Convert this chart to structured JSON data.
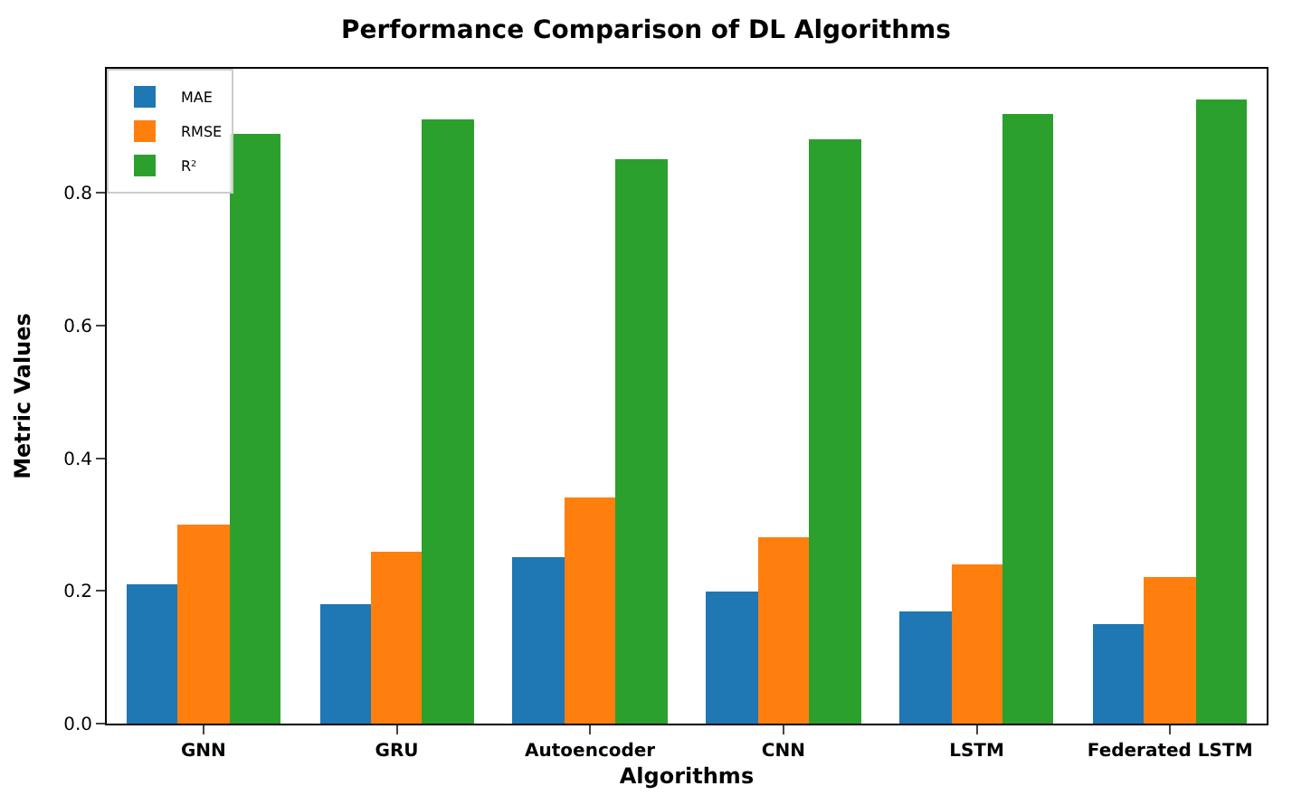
{
  "chart_data": {
    "type": "bar",
    "title": "Performance Comparison of DL Algorithms",
    "xlabel": "Algorithms",
    "ylabel": "Metric Values",
    "categories": [
      "GNN",
      "GRU",
      "Autoencoder",
      "CNN",
      "LSTM",
      "Federated LSTM"
    ],
    "series": [
      {
        "name": "MAE",
        "color": "#1f77b4",
        "values": [
          0.21,
          0.18,
          0.25,
          0.2,
          0.17,
          0.15
        ]
      },
      {
        "name": "RMSE",
        "color": "#ff7f0e",
        "values": [
          0.3,
          0.26,
          0.34,
          0.28,
          0.24,
          0.22
        ]
      },
      {
        "name": "R²",
        "color": "#2ca02c",
        "values": [
          0.89,
          0.91,
          0.85,
          0.88,
          0.92,
          0.94
        ]
      }
    ],
    "ylim": [
      0,
      0.987
    ],
    "yticks": [
      {
        "value": 0,
        "label": "0.0"
      },
      {
        "value": 0.2,
        "label": "0.2"
      },
      {
        "value": 0.4,
        "label": "0.4"
      },
      {
        "value": 0.6,
        "label": "0.6"
      },
      {
        "value": 0.8,
        "label": "0.8"
      }
    ],
    "legend": "top left"
  }
}
